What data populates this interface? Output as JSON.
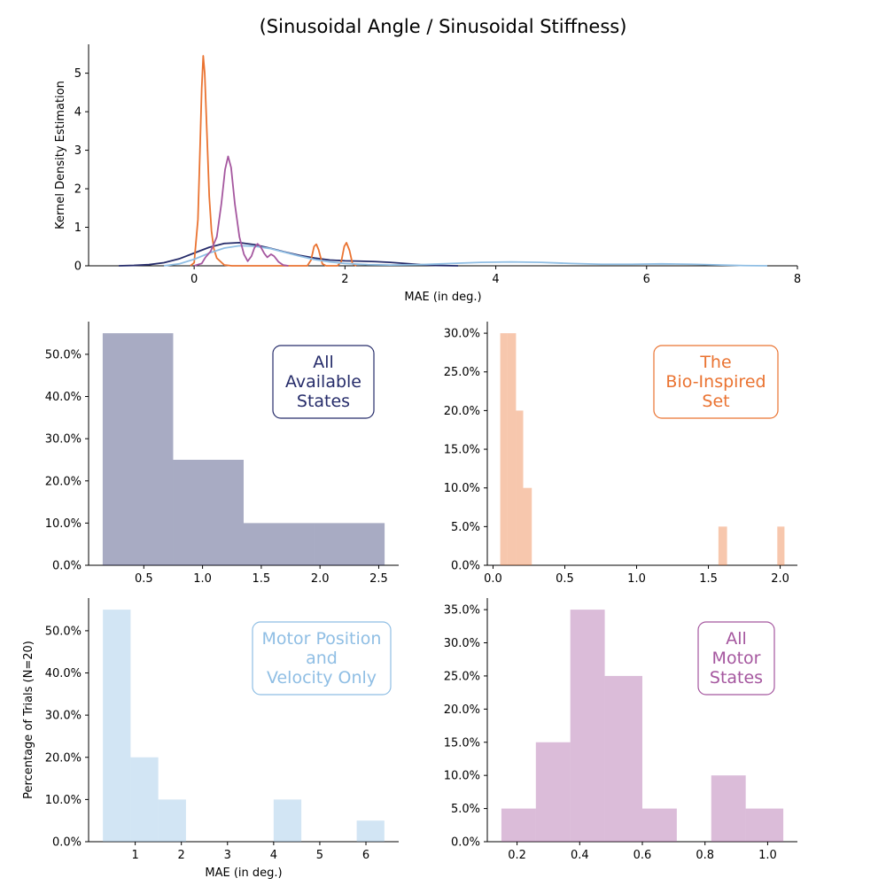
{
  "figure": {
    "title": "(Sinusoidal Angle / Sinusoidal Stiffness)"
  },
  "chart_data": [
    {
      "id": "kde",
      "type": "line",
      "title": "(Sinusoidal Angle / Sinusoidal Stiffness)",
      "xlabel": "MAE (in deg.)",
      "ylabel": "Kernel Density Estimation",
      "xlim": [
        -1.4,
        8.0
      ],
      "ylim": [
        0,
        5.75
      ],
      "xticks": [
        0,
        2,
        4,
        6,
        8
      ],
      "xtick_labels": [
        "0",
        "2",
        "4",
        "6",
        "8"
      ],
      "yticks": [
        0,
        1,
        2,
        3,
        4,
        5
      ],
      "ytick_labels": [
        "0",
        "1",
        "2",
        "3",
        "4",
        "5"
      ],
      "grid": false,
      "series": [
        {
          "label": "All Available States",
          "color": "#262c6a",
          "points": [
            [
              -1.0,
              0.0
            ],
            [
              -0.8,
              0.01
            ],
            [
              -0.6,
              0.03
            ],
            [
              -0.4,
              0.08
            ],
            [
              -0.2,
              0.18
            ],
            [
              0.0,
              0.33
            ],
            [
              0.2,
              0.48
            ],
            [
              0.4,
              0.58
            ],
            [
              0.6,
              0.6
            ],
            [
              0.8,
              0.55
            ],
            [
              1.0,
              0.46
            ],
            [
              1.2,
              0.36
            ],
            [
              1.4,
              0.27
            ],
            [
              1.6,
              0.2
            ],
            [
              1.8,
              0.15
            ],
            [
              2.0,
              0.13
            ],
            [
              2.2,
              0.12
            ],
            [
              2.4,
              0.11
            ],
            [
              2.6,
              0.09
            ],
            [
              2.8,
              0.06
            ],
            [
              3.0,
              0.03
            ],
            [
              3.2,
              0.01
            ],
            [
              3.5,
              0.0
            ]
          ]
        },
        {
          "label": "The Bio-Inspired Set",
          "color": "#ea7331",
          "points": [
            [
              -0.05,
              0.0
            ],
            [
              0.0,
              0.08
            ],
            [
              0.05,
              1.2
            ],
            [
              0.08,
              3.2
            ],
            [
              0.1,
              4.6
            ],
            [
              0.12,
              5.45
            ],
            [
              0.14,
              5.0
            ],
            [
              0.17,
              3.4
            ],
            [
              0.2,
              1.8
            ],
            [
              0.23,
              0.9
            ],
            [
              0.26,
              0.45
            ],
            [
              0.3,
              0.2
            ],
            [
              0.4,
              0.02
            ],
            [
              0.5,
              0.0
            ],
            [
              1.5,
              0.0
            ],
            [
              1.55,
              0.15
            ],
            [
              1.59,
              0.5
            ],
            [
              1.62,
              0.56
            ],
            [
              1.65,
              0.42
            ],
            [
              1.7,
              0.05
            ],
            [
              1.75,
              0.0
            ],
            [
              1.9,
              0.0
            ],
            [
              1.95,
              0.1
            ],
            [
              1.99,
              0.5
            ],
            [
              2.02,
              0.6
            ],
            [
              2.06,
              0.4
            ],
            [
              2.1,
              0.05
            ],
            [
              2.15,
              0.0
            ]
          ]
        },
        {
          "label": "Motor Position and Velocity Only",
          "color": "#8fbee4",
          "points": [
            [
              -0.4,
              0.0
            ],
            [
              -0.2,
              0.05
            ],
            [
              0.0,
              0.17
            ],
            [
              0.2,
              0.33
            ],
            [
              0.4,
              0.46
            ],
            [
              0.6,
              0.52
            ],
            [
              0.8,
              0.51
            ],
            [
              1.0,
              0.45
            ],
            [
              1.2,
              0.35
            ],
            [
              1.4,
              0.25
            ],
            [
              1.6,
              0.16
            ],
            [
              1.8,
              0.1
            ],
            [
              2.0,
              0.06
            ],
            [
              2.3,
              0.03
            ],
            [
              2.6,
              0.02
            ],
            [
              3.0,
              0.03
            ],
            [
              3.4,
              0.06
            ],
            [
              3.8,
              0.09
            ],
            [
              4.2,
              0.1
            ],
            [
              4.6,
              0.09
            ],
            [
              5.0,
              0.06
            ],
            [
              5.4,
              0.04
            ],
            [
              5.8,
              0.04
            ],
            [
              6.2,
              0.05
            ],
            [
              6.6,
              0.04
            ],
            [
              7.0,
              0.02
            ],
            [
              7.3,
              0.005
            ],
            [
              7.6,
              0.0
            ]
          ]
        },
        {
          "label": "All Motor States",
          "color": "#a5579f",
          "points": [
            [
              0.0,
              0.0
            ],
            [
              0.1,
              0.06
            ],
            [
              0.15,
              0.22
            ],
            [
              0.22,
              0.38
            ],
            [
              0.3,
              0.75
            ],
            [
              0.36,
              1.6
            ],
            [
              0.41,
              2.5
            ],
            [
              0.45,
              2.84
            ],
            [
              0.49,
              2.55
            ],
            [
              0.54,
              1.6
            ],
            [
              0.6,
              0.75
            ],
            [
              0.66,
              0.3
            ],
            [
              0.71,
              0.12
            ],
            [
              0.76,
              0.25
            ],
            [
              0.8,
              0.47
            ],
            [
              0.84,
              0.57
            ],
            [
              0.88,
              0.5
            ],
            [
              0.93,
              0.32
            ],
            [
              0.97,
              0.22
            ],
            [
              1.02,
              0.3
            ],
            [
              1.06,
              0.25
            ],
            [
              1.12,
              0.1
            ],
            [
              1.18,
              0.02
            ],
            [
              1.25,
              0.0
            ]
          ]
        }
      ]
    },
    {
      "id": "hist-all-available",
      "type": "bar",
      "annotation": [
        "All",
        "Available",
        "States"
      ],
      "color": "#262c6a",
      "fill_opacity": 0.4,
      "bins": [
        [
          0.15,
          0.75,
          55
        ],
        [
          0.75,
          1.35,
          25
        ],
        [
          1.35,
          1.95,
          10
        ],
        [
          1.95,
          2.55,
          10
        ]
      ],
      "xlim": [
        0.03,
        2.67
      ],
      "ylim": [
        0,
        57.75
      ],
      "xticks": [
        0.5,
        1.0,
        1.5,
        2.0,
        2.5
      ],
      "xtick_labels": [
        "0.5",
        "1.0",
        "1.5",
        "2.0",
        "2.5"
      ],
      "yticks": [
        0,
        10,
        20,
        30,
        40,
        50
      ],
      "ytick_labels": [
        "0.0%",
        "10.0%",
        "20.0%",
        "30.0%",
        "40.0%",
        "50.0%"
      ],
      "xlabel": "",
      "ylabel": ""
    },
    {
      "id": "hist-bio-inspired",
      "type": "bar",
      "annotation": [
        "The",
        "Bio-Inspired",
        "Set"
      ],
      "color": "#ea7331",
      "fill_opacity": 0.4,
      "bins": [
        [
          0.05,
          0.1,
          30
        ],
        [
          0.1,
          0.16,
          30
        ],
        [
          0.16,
          0.21,
          20
        ],
        [
          0.21,
          0.27,
          10
        ],
        [
          1.57,
          1.63,
          5
        ],
        [
          1.98,
          2.03,
          5
        ]
      ],
      "xlim": [
        -0.04,
        2.12
      ],
      "ylim": [
        0,
        31.5
      ],
      "xticks": [
        0.0,
        0.5,
        1.0,
        1.5,
        2.0
      ],
      "xtick_labels": [
        "0.0",
        "0.5",
        "1.0",
        "1.5",
        "2.0"
      ],
      "yticks": [
        0,
        5,
        10,
        15,
        20,
        25,
        30
      ],
      "ytick_labels": [
        "0.0%",
        "5.0%",
        "10.0%",
        "15.0%",
        "20.0%",
        "25.0%",
        "30.0%"
      ],
      "xlabel": "",
      "ylabel": ""
    },
    {
      "id": "hist-motor-pos-vel",
      "type": "bar",
      "annotation": [
        "Motor Position",
        "and",
        "Velocity Only"
      ],
      "color": "#8fbee4",
      "fill_opacity": 0.4,
      "bins": [
        [
          0.3,
          0.9,
          55
        ],
        [
          0.9,
          1.5,
          20
        ],
        [
          1.5,
          2.1,
          10
        ],
        [
          4.0,
          4.6,
          10
        ],
        [
          5.8,
          6.4,
          5
        ]
      ],
      "xlim": [
        -0.01,
        6.71
      ],
      "ylim": [
        0,
        57.75
      ],
      "xticks": [
        1,
        2,
        3,
        4,
        5,
        6
      ],
      "xtick_labels": [
        "1",
        "2",
        "3",
        "4",
        "5",
        "6"
      ],
      "yticks": [
        0,
        10,
        20,
        30,
        40,
        50
      ],
      "ytick_labels": [
        "0.0%",
        "10.0%",
        "20.0%",
        "30.0%",
        "40.0%",
        "50.0%"
      ],
      "xlabel": "MAE (in deg.)",
      "ylabel": "Percentage of Trials (N=20)"
    },
    {
      "id": "hist-all-motor",
      "type": "bar",
      "annotation": [
        "All",
        "Motor",
        "States"
      ],
      "color": "#a5579f",
      "fill_opacity": 0.4,
      "bins": [
        [
          0.15,
          0.26,
          5
        ],
        [
          0.26,
          0.37,
          15
        ],
        [
          0.37,
          0.48,
          35
        ],
        [
          0.48,
          0.6,
          25
        ],
        [
          0.6,
          0.71,
          5
        ],
        [
          0.82,
          0.93,
          10
        ],
        [
          0.93,
          1.05,
          5
        ]
      ],
      "xlim": [
        0.105,
        1.095
      ],
      "ylim": [
        0,
        36.75
      ],
      "xticks": [
        0.2,
        0.4,
        0.6,
        0.8,
        1.0
      ],
      "xtick_labels": [
        "0.2",
        "0.4",
        "0.6",
        "0.8",
        "1.0"
      ],
      "yticks": [
        0,
        5,
        10,
        15,
        20,
        25,
        30,
        35
      ],
      "ytick_labels": [
        "0.0%",
        "5.0%",
        "10.0%",
        "15.0%",
        "20.0%",
        "25.0%",
        "30.0%",
        "35.0%"
      ],
      "xlabel": "",
      "ylabel": ""
    }
  ]
}
